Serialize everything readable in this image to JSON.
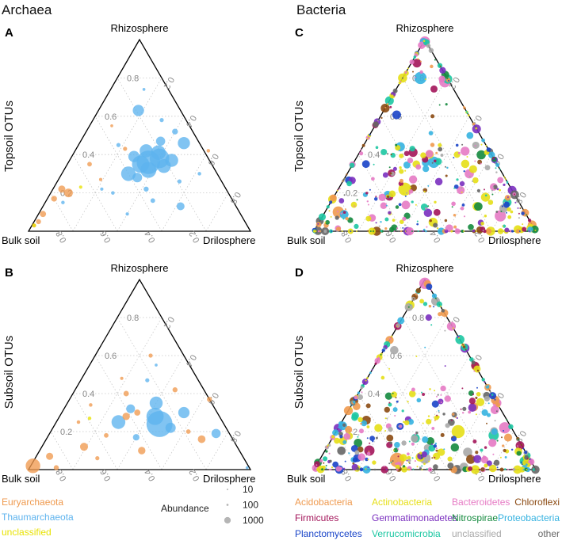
{
  "section_titles": {
    "left": "Archaea",
    "right": "Bacteria"
  },
  "corner_labels": {
    "top": "Rhizosphere",
    "left": "Bulk soil",
    "right": "Drilosphere"
  },
  "row_labels": {
    "top": "Topsoil OTUs",
    "bottom": "Subsoil OTUs"
  },
  "colors": {
    "Euryarchaeota": "#ef9a4f",
    "Thaumarchaeota": "#5eb3ee",
    "unclassified_arch": "#e8e200",
    "Acidobacteria": "#ef9a4f",
    "Actinobacteria": "#e6df16",
    "Bacteroidetes": "#e67ac4",
    "Chloroflexi": "#8b4a12",
    "Firmicutes": "#a3155a",
    "Gemmatimonadetes": "#7a2fbf",
    "Nitrospirae": "#148a3e",
    "Proteobacteria": "#35b2e0",
    "Planctomycetes": "#1944c8",
    "Verrucomicrobia": "#1cc7a2",
    "unclassified": "#a8a8a8",
    "other": "#666666"
  },
  "legend_archaea": [
    {
      "label": "Euryarchaeota",
      "color": "#ef9a4f"
    },
    {
      "label": "Thaumarchaeota",
      "color": "#5eb3ee"
    },
    {
      "label": "unclassified",
      "color": "#e8e200"
    }
  ],
  "legend_abundance": {
    "title": "Abundance",
    "items": [
      {
        "label": "10",
        "value": 10
      },
      {
        "label": "100",
        "value": 100
      },
      {
        "label": "1000",
        "value": 1000
      }
    ]
  },
  "legend_bacteria": [
    {
      "label": "Acidobacteria",
      "color": "#ef9a4f"
    },
    {
      "label": "Actinobacteria",
      "color": "#e6df16"
    },
    {
      "label": "Bacteroidetes",
      "color": "#e67ac4"
    },
    {
      "label": "Chloroflexi",
      "color": "#8b4a12"
    },
    {
      "label": "Firmicutes",
      "color": "#a3155a"
    },
    {
      "label": "Gemmatimonadetes",
      "color": "#7a2fbf"
    },
    {
      "label": "Nitrospirae",
      "color": "#148a3e"
    },
    {
      "label": "Proteobacteria",
      "color": "#35b2e0"
    },
    {
      "label": "Planctomycetes",
      "color": "#1944c8"
    },
    {
      "label": "Verrucomicrobia",
      "color": "#1cc7a2"
    },
    {
      "label": "unclassified",
      "color": "#a8a8a8"
    },
    {
      "label": "other",
      "color": "#666666"
    }
  ],
  "chart_data": [
    {
      "type": "scatter",
      "subtype": "ternary",
      "panel_label": "A",
      "title": "Archaea",
      "row_label": "Topsoil OTUs",
      "axes": {
        "top": "Rhizosphere",
        "left": "Bulk soil",
        "right": "Drilosphere"
      },
      "ticks": [
        "0.2",
        "0.4",
        "0.6",
        "0.8"
      ],
      "size_variable": "Abundance",
      "points": [
        {
          "g": "Thaumarchaeota",
          "rz": 0.63,
          "dr": 0.18,
          "ab": 300
        },
        {
          "g": "Thaumarchaeota",
          "rz": 0.36,
          "dr": 0.36,
          "ab": 1300
        },
        {
          "g": "Thaumarchaeota",
          "rz": 0.38,
          "dr": 0.4,
          "ab": 900
        },
        {
          "g": "Thaumarchaeota",
          "rz": 0.35,
          "dr": 0.33,
          "ab": 700
        },
        {
          "g": "Thaumarchaeota",
          "rz": 0.42,
          "dr": 0.32,
          "ab": 400
        },
        {
          "g": "Thaumarchaeota",
          "rz": 0.32,
          "dr": 0.38,
          "ab": 600
        },
        {
          "g": "Thaumarchaeota",
          "rz": 0.46,
          "dr": 0.47,
          "ab": 350
        },
        {
          "g": "Thaumarchaeota",
          "rz": 0.34,
          "dr": 0.44,
          "ab": 450
        },
        {
          "g": "Thaumarchaeota",
          "rz": 0.3,
          "dr": 0.3,
          "ab": 500
        },
        {
          "g": "Thaumarchaeota",
          "rz": 0.39,
          "dr": 0.28,
          "ab": 300
        },
        {
          "g": "Thaumarchaeota",
          "rz": 0.41,
          "dr": 0.38,
          "ab": 500
        },
        {
          "g": "Thaumarchaeota",
          "rz": 0.37,
          "dr": 0.46,
          "ab": 400
        },
        {
          "g": "Thaumarchaeota",
          "rz": 0.47,
          "dr": 0.36,
          "ab": 200
        },
        {
          "g": "Thaumarchaeota",
          "rz": 0.28,
          "dr": 0.35,
          "ab": 220
        },
        {
          "g": "Thaumarchaeota",
          "rz": 0.52,
          "dr": 0.4,
          "ab": 80
        },
        {
          "g": "Thaumarchaeota",
          "rz": 0.58,
          "dr": 0.31,
          "ab": 40
        },
        {
          "g": "Thaumarchaeota",
          "rz": 0.13,
          "dr": 0.62,
          "ab": 150
        },
        {
          "g": "Thaumarchaeota",
          "rz": 0.16,
          "dr": 0.48,
          "ab": 50
        },
        {
          "g": "Thaumarchaeota",
          "rz": 0.22,
          "dr": 0.42,
          "ab": 60
        },
        {
          "g": "Thaumarchaeota",
          "rz": 0.26,
          "dr": 0.55,
          "ab": 40
        },
        {
          "g": "Thaumarchaeota",
          "rz": 0.2,
          "dr": 0.28,
          "ab": 30
        },
        {
          "g": "Thaumarchaeota",
          "rz": 0.74,
          "dr": 0.15,
          "ab": 20
        },
        {
          "g": "Thaumarchaeota",
          "rz": 0.09,
          "dr": 0.4,
          "ab": 25
        },
        {
          "g": "Thaumarchaeota",
          "rz": 0.3,
          "dr": 0.62,
          "ab": 30
        },
        {
          "g": "Thaumarchaeota",
          "rz": 0.22,
          "dr": 0.22,
          "ab": 25
        },
        {
          "g": "Thaumarchaeota",
          "rz": 0.15,
          "dr": 0.08,
          "ab": 30
        },
        {
          "g": "Thaumarchaeota",
          "rz": 0.45,
          "dr": 0.18,
          "ab": 40
        },
        {
          "g": "Euryarchaeota",
          "rz": 0.2,
          "dr": 0.08,
          "ab": 180
        },
        {
          "g": "Euryarchaeota",
          "rz": 0.22,
          "dr": 0.04,
          "ab": 120
        },
        {
          "g": "Euryarchaeota",
          "rz": 0.17,
          "dr": 0.03,
          "ab": 80
        },
        {
          "g": "Euryarchaeota",
          "rz": 0.09,
          "dr": 0.02,
          "ab": 90
        },
        {
          "g": "Euryarchaeota",
          "rz": 0.05,
          "dr": 0.02,
          "ab": 60
        },
        {
          "g": "Euryarchaeota",
          "rz": 0.03,
          "dr": 0.01,
          "ab": 40
        },
        {
          "g": "Euryarchaeota",
          "rz": 0.43,
          "dr": 0.22,
          "ab": 40
        },
        {
          "g": "Euryarchaeota",
          "rz": 0.35,
          "dr": 0.1,
          "ab": 50
        },
        {
          "g": "Euryarchaeota",
          "rz": 0.42,
          "dr": 0.6,
          "ab": 30
        },
        {
          "g": "Euryarchaeota",
          "rz": 0.27,
          "dr": 0.19,
          "ab": 25
        },
        {
          "g": "Euryarchaeota",
          "rz": 0.55,
          "dr": 0.1,
          "ab": 20
        },
        {
          "g": "unclassified",
          "rz": 0.03,
          "dr": 0.01,
          "ab": 35
        },
        {
          "g": "unclassified",
          "rz": 0.23,
          "dr": 0.12,
          "ab": 25
        }
      ]
    },
    {
      "type": "scatter",
      "subtype": "ternary",
      "panel_label": "B",
      "title": "Archaea",
      "row_label": "Subsoil OTUs",
      "axes": {
        "top": "Rhizosphere",
        "left": "Bulk soil",
        "right": "Drilosphere"
      },
      "ticks": [
        "0.2",
        "0.4",
        "0.6",
        "0.8"
      ],
      "size_variable": "Abundance",
      "points": [
        {
          "g": "Thaumarchaeota",
          "rz": 0.24,
          "dr": 0.47,
          "ab": 1600
        },
        {
          "g": "Thaumarchaeota",
          "rz": 0.28,
          "dr": 0.43,
          "ab": 700
        },
        {
          "g": "Thaumarchaeota",
          "rz": 0.25,
          "dr": 0.28,
          "ab": 450
        },
        {
          "g": "Thaumarchaeota",
          "rz": 0.35,
          "dr": 0.4,
          "ab": 400
        },
        {
          "g": "Thaumarchaeota",
          "rz": 0.19,
          "dr": 0.75,
          "ab": 200
        },
        {
          "g": "Thaumarchaeota",
          "rz": 0.3,
          "dr": 0.55,
          "ab": 300
        },
        {
          "g": "Thaumarchaeota",
          "rz": 0.22,
          "dr": 0.53,
          "ab": 250
        },
        {
          "g": "Thaumarchaeota",
          "rz": 0.32,
          "dr": 0.3,
          "ab": 180
        },
        {
          "g": "Thaumarchaeota",
          "rz": 0.17,
          "dr": 0.4,
          "ab": 100
        },
        {
          "g": "Thaumarchaeota",
          "rz": 0.01,
          "dr": 0.98,
          "ab": 20
        },
        {
          "g": "Thaumarchaeota",
          "rz": 0.55,
          "dr": 0.3,
          "ab": 20
        },
        {
          "g": "Thaumarchaeota",
          "rz": 0.47,
          "dr": 0.3,
          "ab": 40
        },
        {
          "g": "Euryarchaeota",
          "rz": 0.02,
          "dr": 0.01,
          "ab": 500
        },
        {
          "g": "Euryarchaeota",
          "rz": 0.07,
          "dr": 0.06,
          "ab": 120
        },
        {
          "g": "Euryarchaeota",
          "rz": 0.01,
          "dr": 0.12,
          "ab": 60
        },
        {
          "g": "Euryarchaeota",
          "rz": 0.12,
          "dr": 0.19,
          "ab": 150
        },
        {
          "g": "Euryarchaeota",
          "rz": 0.1,
          "dr": 0.46,
          "ab": 130
        },
        {
          "g": "Euryarchaeota",
          "rz": 0.16,
          "dr": 0.7,
          "ab": 140
        },
        {
          "g": "Euryarchaeota",
          "rz": 0.28,
          "dr": 0.3,
          "ab": 130
        },
        {
          "g": "Euryarchaeota",
          "rz": 0.3,
          "dr": 0.34,
          "ab": 90
        },
        {
          "g": "Euryarchaeota",
          "rz": 0.4,
          "dr": 0.24,
          "ab": 70
        },
        {
          "g": "Euryarchaeota",
          "rz": 0.42,
          "dr": 0.45,
          "ab": 60
        },
        {
          "g": "Euryarchaeota",
          "rz": 0.37,
          "dr": 0.63,
          "ab": 60
        },
        {
          "g": "Euryarchaeota",
          "rz": 0.6,
          "dr": 0.25,
          "ab": 40
        },
        {
          "g": "Euryarchaeota",
          "rz": 0.2,
          "dr": 0.62,
          "ab": 50
        },
        {
          "g": "Euryarchaeota",
          "rz": 0.18,
          "dr": 0.26,
          "ab": 50
        },
        {
          "g": "Euryarchaeota",
          "rz": 0.06,
          "dr": 0.28,
          "ab": 40
        },
        {
          "g": "Euryarchaeota",
          "rz": 0.48,
          "dr": 0.18,
          "ab": 25
        },
        {
          "g": "Euryarchaeota",
          "rz": 0.34,
          "dr": 0.11,
          "ab": 30
        },
        {
          "g": "Euryarchaeota",
          "rz": 0.25,
          "dr": 0.1,
          "ab": 30
        },
        {
          "g": "unclassified",
          "rz": 0.27,
          "dr": 0.14,
          "ab": 30
        }
      ]
    },
    {
      "type": "scatter",
      "subtype": "ternary",
      "panel_label": "C",
      "title": "Bacteria",
      "row_label": "Topsoil OTUs",
      "axes": {
        "top": "Rhizosphere",
        "left": "Bulk soil",
        "right": "Drilosphere"
      },
      "ticks": [
        "0.2",
        "0.4",
        "0.6",
        "0.8"
      ],
      "size_variable": "Abundance",
      "note": "Several hundred OTUs; values estimated, concentrated along the bulk soil–drilosphere base and edges",
      "points": [
        {
          "g": "Bacteroidetes",
          "rz": 0.99,
          "dr": 0.005,
          "ab": 250
        },
        {
          "g": "Proteobacteria",
          "rz": 0.8,
          "dr": 0.08,
          "ab": 350
        },
        {
          "g": "Bacteroidetes",
          "rz": 0.78,
          "dr": 0.2,
          "ab": 300
        },
        {
          "g": "Proteobacteria",
          "rz": 0.36,
          "dr": 0.36,
          "ab": 300
        },
        {
          "g": "Actinobacteria",
          "rz": 0.22,
          "dr": 0.3,
          "ab": 400
        },
        {
          "g": "Bacteroidetes",
          "rz": 0.08,
          "dr": 0.8,
          "ab": 300
        },
        {
          "g": "Bacteroidetes",
          "rz": 0.3,
          "dr": 0.55,
          "ab": 200
        },
        {
          "g": "Firmicutes",
          "rz": 0.18,
          "dr": 0.25,
          "ab": 150
        },
        {
          "g": "Nitrospirae",
          "rz": 0.08,
          "dr": 0.38,
          "ab": 100
        },
        {
          "g": "Acidobacteria",
          "rz": 0.1,
          "dr": 0.06,
          "ab": 300
        }
      ]
    },
    {
      "type": "scatter",
      "subtype": "ternary",
      "panel_label": "D",
      "title": "Bacteria",
      "row_label": "Subsoil OTUs",
      "axes": {
        "top": "Rhizosphere",
        "left": "Bulk soil",
        "right": "Drilosphere"
      },
      "ticks": [
        "0.2",
        "0.4",
        "0.6",
        "0.8"
      ],
      "size_variable": "Abundance",
      "note": "Several hundred OTUs; values estimated, dense near the base and along the rhizosphere edges",
      "points": [
        {
          "g": "Bacteroidetes",
          "rz": 0.98,
          "dr": 0.01,
          "ab": 300
        },
        {
          "g": "Actinobacteria",
          "rz": 0.2,
          "dr": 0.55,
          "ab": 400
        },
        {
          "g": "Bacteroidetes",
          "rz": 0.22,
          "dr": 0.75,
          "ab": 300
        },
        {
          "g": "Verrucomicrobia",
          "rz": 0.18,
          "dr": 0.72,
          "ab": 250
        },
        {
          "g": "Firmicutes",
          "rz": 0.1,
          "dr": 0.2,
          "ab": 250
        },
        {
          "g": "Acidobacteria",
          "rz": 0.05,
          "dr": 0.35,
          "ab": 500
        },
        {
          "g": "unclassified",
          "rz": 0.06,
          "dr": 0.47,
          "ab": 300
        },
        {
          "g": "Nitrospirae",
          "rz": 0.15,
          "dr": 0.45,
          "ab": 150
        },
        {
          "g": "Proteobacteria",
          "rz": 0.3,
          "dr": 0.62,
          "ab": 100
        }
      ]
    }
  ]
}
